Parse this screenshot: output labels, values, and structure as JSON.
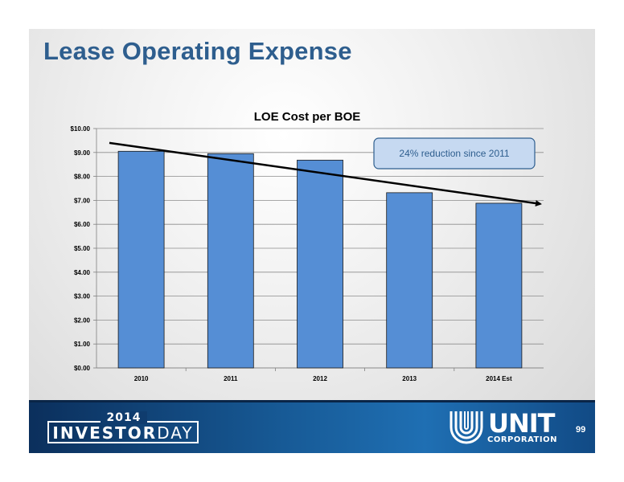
{
  "slide": {
    "title": "Lease Operating Expense",
    "page_number": "99"
  },
  "footer": {
    "investor_year": "2014",
    "investor_word_1": "INVESTOR",
    "investor_word_2": "DAY",
    "company_name": "UNIT",
    "company_sub": "CORPORATION"
  },
  "colors": {
    "bar": "#558ed5",
    "title": "#2e5e8e",
    "footer": "#175a96",
    "callout": "#c6d9f1"
  },
  "chart_data": {
    "type": "bar",
    "title": "LOE Cost per BOE",
    "categories": [
      "2010",
      "2011",
      "2012",
      "2013",
      "2014 Est"
    ],
    "values": [
      9.05,
      8.95,
      8.68,
      7.32,
      6.88
    ],
    "ylim": [
      0,
      10
    ],
    "yticks": [
      "$0.00",
      "$1.00",
      "$2.00",
      "$3.00",
      "$4.00",
      "$5.00",
      "$6.00",
      "$7.00",
      "$8.00",
      "$9.00",
      "$10.00"
    ],
    "ytick_values": [
      0,
      1,
      2,
      3,
      4,
      5,
      6,
      7,
      8,
      9,
      10
    ],
    "grid": true,
    "trend_line": {
      "start": 9.4,
      "end": 6.85
    },
    "annotation": "24% reduction since 2011"
  }
}
